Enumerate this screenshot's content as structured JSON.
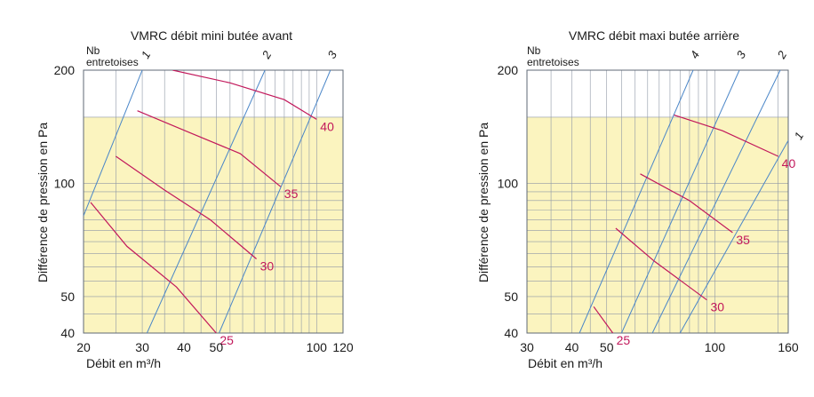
{
  "chart_data": [
    {
      "type": "line",
      "title": "VMRC débit mini butée avant",
      "xlabel": "Débit en m³/h",
      "ylabel": "Différence de pression en Pa",
      "xscale": "log",
      "yscale": "log",
      "xlim": [
        20,
        120
      ],
      "ylim": [
        40,
        200
      ],
      "xticks": [
        20,
        30,
        40,
        50,
        100,
        120
      ],
      "yticks": [
        40,
        50,
        100,
        200
      ],
      "shaded_band_y": [
        40,
        150
      ],
      "grid": true,
      "entretoise_title": [
        "Nb",
        "entretoises"
      ],
      "entretoise_lines": [
        {
          "label": "1",
          "points": [
            [
              20,
              82
            ],
            [
              30,
              200
            ]
          ]
        },
        {
          "label": "2",
          "points": [
            [
              31,
              40
            ],
            [
              70,
              200
            ]
          ]
        },
        {
          "label": "3",
          "points": [
            [
              51,
              40
            ],
            [
              110,
              200
            ]
          ]
        }
      ],
      "series": [
        {
          "name": "25",
          "points": [
            [
              21,
              89
            ],
            [
              27,
              68
            ],
            [
              38,
              53
            ],
            [
              50,
              40
            ]
          ]
        },
        {
          "name": "30",
          "points": [
            [
              25,
              118
            ],
            [
              35,
              96
            ],
            [
              48,
              80
            ],
            [
              66,
              63
            ]
          ]
        },
        {
          "name": "35",
          "points": [
            [
              29,
              156
            ],
            [
              42,
              136
            ],
            [
              59,
              120
            ],
            [
              78,
              98
            ]
          ]
        },
        {
          "name": "40",
          "points": [
            [
              37,
              200
            ],
            [
              55,
              185
            ],
            [
              80,
              167
            ],
            [
              100,
              148
            ]
          ]
        }
      ]
    },
    {
      "type": "line",
      "title": "VMRC débit maxi butée arrière",
      "xlabel": "Débit en m³/h",
      "ylabel": "Différence de pression en Pa",
      "xscale": "log",
      "yscale": "log",
      "xlim": [
        30,
        160
      ],
      "ylim": [
        40,
        200
      ],
      "xticks": [
        30,
        40,
        50,
        100,
        160
      ],
      "yticks": [
        40,
        50,
        100,
        200
      ],
      "shaded_band_y": [
        40,
        150
      ],
      "grid": true,
      "entretoise_title": [
        "Nb",
        "entretoises"
      ],
      "entretoise_lines": [
        {
          "label": "4",
          "points": [
            [
              42,
              40
            ],
            [
              87,
              200
            ]
          ]
        },
        {
          "label": "3",
          "points": [
            [
              55,
              40
            ],
            [
              117,
              200
            ]
          ]
        },
        {
          "label": "2",
          "points": [
            [
              67,
              40
            ],
            [
              152,
              200
            ]
          ]
        },
        {
          "label": "1",
          "points": [
            [
              80,
              40
            ],
            [
              160,
              130
            ]
          ]
        }
      ],
      "series": [
        {
          "name": "25",
          "points": [
            [
              46,
              47
            ],
            [
              52,
              40
            ]
          ]
        },
        {
          "name": "30",
          "points": [
            [
              53,
              76
            ],
            [
              68,
              62
            ],
            [
              95,
              49
            ]
          ]
        },
        {
          "name": "35",
          "points": [
            [
              62,
              106
            ],
            [
              85,
              90
            ],
            [
              112,
              74
            ]
          ]
        },
        {
          "name": "40",
          "points": [
            [
              77,
              152
            ],
            [
              105,
              138
            ],
            [
              150,
              118
            ]
          ]
        }
      ]
    }
  ]
}
